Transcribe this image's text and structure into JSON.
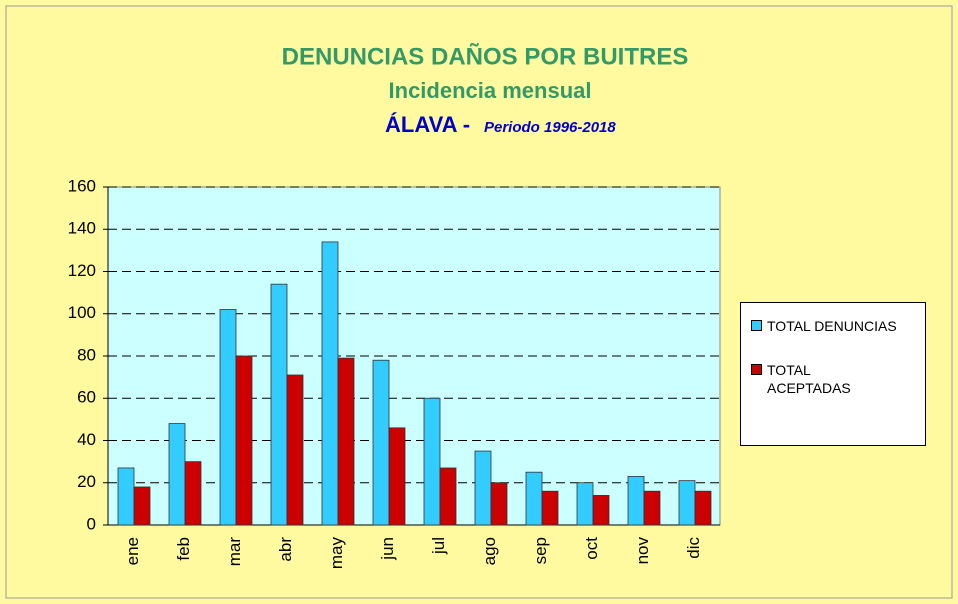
{
  "chart_data": {
    "type": "bar",
    "title": "DENUNCIAS DAÑOS POR BUITRES",
    "subtitle": "Incidencia mensual",
    "region": "ÁLAVA -",
    "period": "Periodo 1996-2018",
    "categories": [
      "ene",
      "feb",
      "mar",
      "abr",
      "may",
      "jun",
      "jul",
      "ago",
      "sep",
      "oct",
      "nov",
      "dic"
    ],
    "series": [
      {
        "name": "TOTAL DENUNCIAS",
        "color": "#33ccff",
        "values": [
          27,
          48,
          102,
          114,
          134,
          78,
          60,
          35,
          25,
          20,
          23,
          21
        ]
      },
      {
        "name": "TOTAL ACEPTADAS",
        "color": "#cc0000",
        "values": [
          18,
          30,
          80,
          71,
          79,
          46,
          27,
          20,
          16,
          14,
          16,
          16
        ]
      }
    ],
    "ylim": [
      0,
      160
    ],
    "yticks": [
      0,
      20,
      40,
      60,
      80,
      100,
      120,
      140,
      160
    ],
    "grid": true,
    "legend": "right"
  }
}
